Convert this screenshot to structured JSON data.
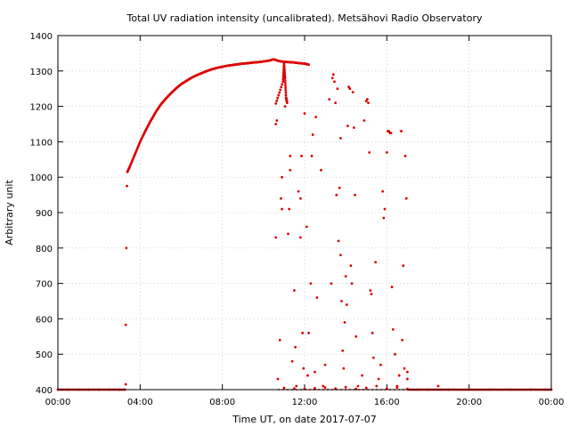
{
  "chart_data": {
    "type": "scatter",
    "title": "Total UV radiation intensity (uncalibrated). Metsähovi Radio Observatory",
    "xlabel": "Time UT, on date 2017-07-07",
    "ylabel": "Arbitrary unit",
    "xlim": [
      0,
      24
    ],
    "ylim": [
      400,
      1400
    ],
    "x_ticks": [
      0,
      4,
      8,
      12,
      16,
      20,
      24
    ],
    "x_tick_labels": [
      "00:00",
      "04:00",
      "08:00",
      "12:00",
      "16:00",
      "20:00",
      "00:00"
    ],
    "y_ticks": [
      400,
      500,
      600,
      700,
      800,
      900,
      1000,
      1100,
      1200,
      1300,
      1400
    ],
    "y_tick_labels": [
      "400",
      "500",
      "600",
      "700",
      "800",
      "900",
      "1000",
      "1100",
      "1200",
      "1300",
      "1400"
    ],
    "grid": true,
    "series": [
      {
        "color": "#dd0000",
        "points": [
          [
            0.0,
            400
          ],
          [
            0.5,
            400
          ],
          [
            1.0,
            400
          ],
          [
            1.5,
            400
          ],
          [
            2.0,
            400
          ],
          [
            2.5,
            400
          ],
          [
            3.0,
            400
          ],
          [
            3.25,
            400
          ],
          [
            3.3,
            415
          ],
          [
            3.3,
            583
          ],
          [
            3.33,
            800
          ],
          [
            3.36,
            975
          ],
          [
            3.38,
            1015
          ],
          [
            3.5,
            1030
          ],
          [
            3.75,
            1065
          ],
          [
            4.0,
            1100
          ],
          [
            4.25,
            1130
          ],
          [
            4.5,
            1158
          ],
          [
            4.75,
            1183
          ],
          [
            5.0,
            1205
          ],
          [
            5.25,
            1222
          ],
          [
            5.5,
            1237
          ],
          [
            5.75,
            1251
          ],
          [
            6.0,
            1263
          ],
          [
            6.25,
            1272
          ],
          [
            6.5,
            1281
          ],
          [
            6.75,
            1288
          ],
          [
            7.0,
            1294
          ],
          [
            7.25,
            1300
          ],
          [
            7.5,
            1305
          ],
          [
            7.75,
            1309
          ],
          [
            8.0,
            1312
          ],
          [
            8.25,
            1315
          ],
          [
            8.5,
            1317
          ],
          [
            8.75,
            1319
          ],
          [
            9.0,
            1321
          ],
          [
            9.25,
            1322
          ],
          [
            9.5,
            1324
          ],
          [
            9.75,
            1325
          ],
          [
            10.0,
            1327
          ],
          [
            10.25,
            1329
          ],
          [
            10.5,
            1333
          ],
          [
            10.75,
            1328
          ],
          [
            11.0,
            1326
          ],
          [
            11.25,
            1325
          ],
          [
            11.5,
            1324
          ],
          [
            11.75,
            1322
          ],
          [
            12.0,
            1321
          ],
          [
            12.2,
            1318
          ],
          [
            10.6,
            1150
          ],
          [
            10.6,
            1208
          ],
          [
            10.65,
            1160
          ],
          [
            10.6,
            830
          ],
          [
            10.7,
            430
          ],
          [
            10.8,
            540
          ],
          [
            10.85,
            940
          ],
          [
            10.9,
            910
          ],
          [
            10.9,
            1000
          ],
          [
            10.95,
            1270
          ],
          [
            11.0,
            1320
          ],
          [
            11.05,
            1200
          ],
          [
            11.05,
            1280
          ],
          [
            11.1,
            1225
          ],
          [
            11.15,
            1210
          ],
          [
            11.2,
            840
          ],
          [
            11.25,
            910
          ],
          [
            11.3,
            1020
          ],
          [
            11.3,
            1060
          ],
          [
            11.4,
            480
          ],
          [
            11.5,
            680
          ],
          [
            11.55,
            520
          ],
          [
            11.6,
            410
          ],
          [
            11.7,
            960
          ],
          [
            11.8,
            940
          ],
          [
            11.8,
            830
          ],
          [
            11.85,
            1060
          ],
          [
            11.9,
            560
          ],
          [
            11.95,
            460
          ],
          [
            12.0,
            1180
          ],
          [
            12.1,
            860
          ],
          [
            12.15,
            440
          ],
          [
            12.2,
            560
          ],
          [
            12.3,
            700
          ],
          [
            12.35,
            1060
          ],
          [
            12.4,
            1120
          ],
          [
            12.5,
            450
          ],
          [
            12.55,
            1170
          ],
          [
            12.6,
            660
          ],
          [
            12.8,
            1020
          ],
          [
            12.9,
            410
          ],
          [
            13.0,
            470
          ],
          [
            13.2,
            1220
          ],
          [
            13.3,
            700
          ],
          [
            13.35,
            1280
          ],
          [
            13.4,
            1290
          ],
          [
            13.45,
            1270
          ],
          [
            13.5,
            1210
          ],
          [
            13.55,
            950
          ],
          [
            13.6,
            1250
          ],
          [
            13.65,
            820
          ],
          [
            13.7,
            970
          ],
          [
            13.75,
            1110
          ],
          [
            13.75,
            780
          ],
          [
            13.8,
            650
          ],
          [
            13.85,
            510
          ],
          [
            13.9,
            460
          ],
          [
            13.95,
            590
          ],
          [
            14.0,
            720
          ],
          [
            14.05,
            640
          ],
          [
            14.1,
            1145
          ],
          [
            14.15,
            1255
          ],
          [
            14.2,
            1250
          ],
          [
            14.25,
            750
          ],
          [
            14.3,
            700
          ],
          [
            14.35,
            1240
          ],
          [
            14.4,
            1140
          ],
          [
            14.45,
            950
          ],
          [
            14.5,
            550
          ],
          [
            14.6,
            410
          ],
          [
            14.8,
            440
          ],
          [
            14.9,
            1160
          ],
          [
            15.0,
            1215
          ],
          [
            15.05,
            1220
          ],
          [
            15.1,
            1210
          ],
          [
            15.15,
            1070
          ],
          [
            15.2,
            680
          ],
          [
            15.25,
            670
          ],
          [
            15.3,
            560
          ],
          [
            15.35,
            490
          ],
          [
            15.45,
            760
          ],
          [
            15.6,
            430
          ],
          [
            15.7,
            470
          ],
          [
            15.8,
            960
          ],
          [
            15.85,
            885
          ],
          [
            15.9,
            910
          ],
          [
            16.0,
            1070
          ],
          [
            16.05,
            1130
          ],
          [
            16.1,
            1130
          ],
          [
            16.15,
            1125
          ],
          [
            16.2,
            1125
          ],
          [
            16.25,
            690
          ],
          [
            16.3,
            570
          ],
          [
            16.4,
            500
          ],
          [
            16.5,
            410
          ],
          [
            16.6,
            440
          ],
          [
            16.7,
            1130
          ],
          [
            16.75,
            540
          ],
          [
            16.8,
            750
          ],
          [
            16.85,
            460
          ],
          [
            16.9,
            1060
          ],
          [
            16.95,
            940
          ],
          [
            17.0,
            450
          ],
          [
            17.0,
            430
          ],
          [
            11.0,
            405
          ],
          [
            11.5,
            403
          ],
          [
            12.0,
            402
          ],
          [
            12.5,
            404
          ],
          [
            13.0,
            406
          ],
          [
            13.5,
            403
          ],
          [
            14.0,
            407
          ],
          [
            14.5,
            402
          ],
          [
            15.0,
            405
          ],
          [
            15.5,
            410
          ],
          [
            16.0,
            403
          ],
          [
            16.5,
            406
          ],
          [
            17.0,
            402
          ],
          [
            18.5,
            410
          ],
          [
            17.5,
            400
          ],
          [
            18.0,
            400
          ],
          [
            19.0,
            400
          ],
          [
            20.0,
            400
          ],
          [
            21.0,
            400
          ],
          [
            22.0,
            400
          ],
          [
            23.0,
            400
          ],
          [
            24.0,
            400
          ]
        ]
      }
    ]
  }
}
